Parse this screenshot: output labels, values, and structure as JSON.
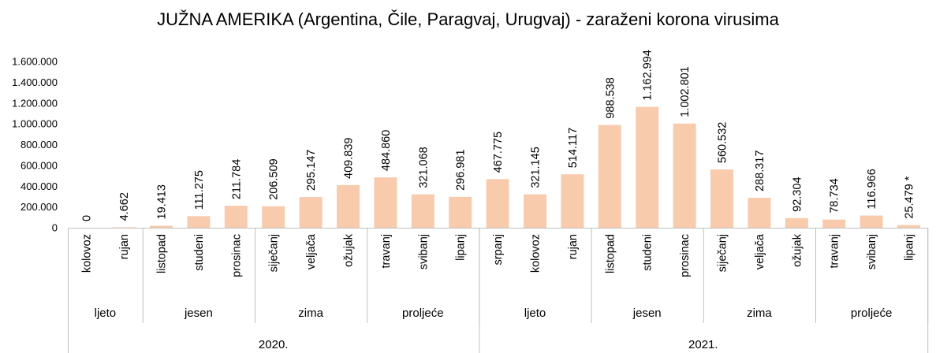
{
  "chart_data": {
    "type": "bar",
    "title": "JUŽNA AMERIKA (Argentina, Čile, Paragvaj, Urugvaj) - zaraženi korona virusima",
    "xlabel": "",
    "ylabel": "",
    "ylim": [
      0,
      1600000
    ],
    "ytick_values": [
      0,
      200000,
      400000,
      600000,
      800000,
      1000000,
      1200000,
      1400000,
      1600000
    ],
    "ytick_labels": [
      "0",
      "200.000",
      "400.000",
      "600.000",
      "800.000",
      "1.000.000",
      "1.200.000",
      "1.400.000",
      "1.600.000"
    ],
    "grid": false,
    "bar_color": "#F8CBAD",
    "categories": [
      "kolovoz",
      "rujan",
      "listopad",
      "studeni",
      "prosinac",
      "siječanj",
      "veljača",
      "ožujak",
      "travanj",
      "svibanj",
      "lipanj",
      "srpanj",
      "kolovoz",
      "rujan",
      "listopad",
      "studeni",
      "prosinac",
      "siječanj",
      "veljača",
      "ožujak",
      "travanj",
      "svibanj",
      "lipanj"
    ],
    "values": [
      0,
      4662,
      19413,
      111275,
      211784,
      206509,
      295147,
      409839,
      484860,
      321068,
      296981,
      467775,
      321145,
      514117,
      988538,
      1162994,
      1002801,
      560532,
      288317,
      92304,
      78734,
      116966,
      25479
    ],
    "data_labels": [
      "0",
      "4.662",
      "19.413",
      "111.275",
      "211.784",
      "206.509",
      "295.147",
      "409.839",
      "484.860",
      "321.068",
      "296.981",
      "467.775",
      "321.145",
      "514.117",
      "988.538",
      "1.162.994",
      "1.002.801",
      "560.532",
      "288.317",
      "92.304",
      "78.734",
      "116.966",
      "25.479 *"
    ],
    "season_groups": [
      {
        "label": "ljeto",
        "count": 2
      },
      {
        "label": "jesen",
        "count": 3
      },
      {
        "label": "zima",
        "count": 3
      },
      {
        "label": "proljeće",
        "count": 3
      },
      {
        "label": "ljeto",
        "count": 3
      },
      {
        "label": "jesen",
        "count": 3
      },
      {
        "label": "zima",
        "count": 3
      },
      {
        "label": "proljeće",
        "count": 3
      }
    ],
    "year_groups": [
      {
        "label": "2020.",
        "count": 11
      },
      {
        "label": "2021.",
        "count": 12
      }
    ]
  }
}
